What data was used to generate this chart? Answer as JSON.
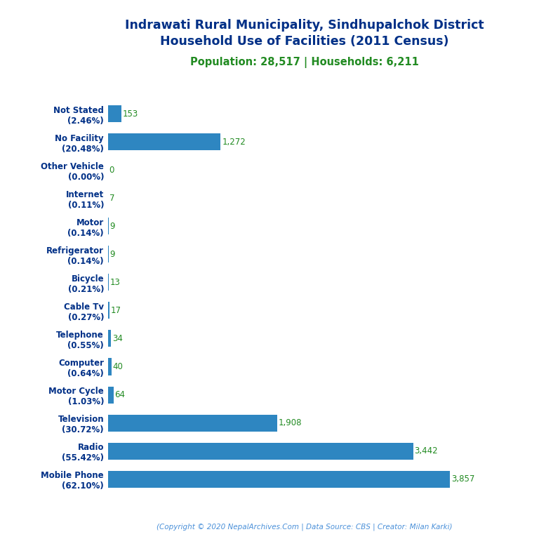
{
  "title_line1": "Indrawati Rural Municipality, Sindhupalchok District",
  "title_line2": "Household Use of Facilities (2011 Census)",
  "subtitle": "Population: 28,517 | Households: 6,211",
  "footer": "(Copyright © 2020 NepalArchives.Com | Data Source: CBS | Creator: Milan Karki)",
  "categories": [
    "Not Stated\n(2.46%)",
    "No Facility\n(20.48%)",
    "Other Vehicle\n(0.00%)",
    "Internet\n(0.11%)",
    "Motor\n(0.14%)",
    "Refrigerator\n(0.14%)",
    "Bicycle\n(0.21%)",
    "Cable Tv\n(0.27%)",
    "Telephone\n(0.55%)",
    "Computer\n(0.64%)",
    "Motor Cycle\n(1.03%)",
    "Television\n(30.72%)",
    "Radio\n(55.42%)",
    "Mobile Phone\n(62.10%)"
  ],
  "values": [
    153,
    1272,
    0,
    7,
    9,
    9,
    13,
    17,
    34,
    40,
    64,
    1908,
    3442,
    3857
  ],
  "bar_color": "#2E86C1",
  "title_color": "#003087",
  "subtitle_color": "#228B22",
  "label_color": "#003087",
  "value_color": "#228B22",
  "footer_color": "#4A90D9",
  "background_color": "#FFFFFF",
  "title_fontsize": 12.5,
  "subtitle_fontsize": 10.5,
  "label_fontsize": 8.5,
  "value_fontsize": 8.5,
  "footer_fontsize": 7.5
}
